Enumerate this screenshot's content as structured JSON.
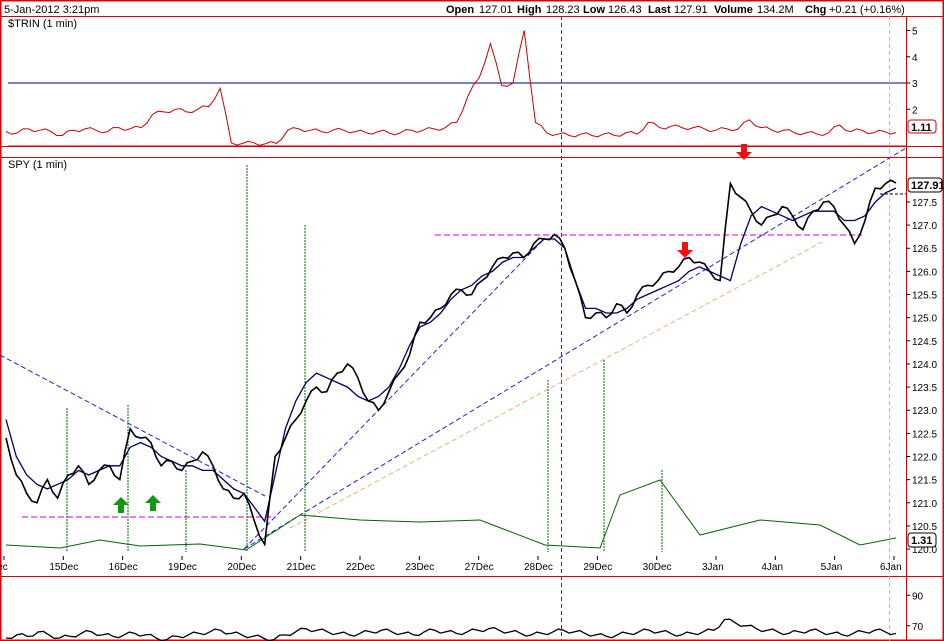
{
  "header": {
    "date": "5-Jan-2012 3:21pm",
    "open_label": "Open",
    "open": "127.01",
    "high_label": "High",
    "high": "128.23",
    "low_label": "Low",
    "low": "126.43",
    "last_label": "Last",
    "last": "127.91",
    "volume_label": "Volume",
    "volume": "134.2M",
    "chg_label": "Chg",
    "chg": "+0.21 (+0.16%)"
  },
  "colors": {
    "frame": "#dd0000",
    "price": "#000000",
    "trin": "#cc0000",
    "ma": "#000066",
    "trendline": "#2222cc",
    "resistance": "#cc00cc",
    "support_trend": "#f0b080",
    "tick": "#006600",
    "hline_blue": "#000080",
    "day_sep": "#cc0000",
    "now_line": "#e0c040",
    "arrow_up": "#119911",
    "arrow_down": "#ee1111"
  },
  "chart_data": [
    {
      "panel": "trin",
      "type": "line",
      "title": "$TRIN (1 min)",
      "y_ticks": [
        "2",
        "3",
        "4",
        "5"
      ],
      "ylim": [
        0.6,
        5.4
      ],
      "reference_line": 3,
      "last_value_badge": "1.11",
      "series": [
        {
          "name": "$TRIN",
          "values": [
            1.15,
            1.1,
            1.25,
            1.2,
            1.15,
            1.0,
            1.2,
            1.25,
            1.2,
            1.15,
            1.3,
            1.25,
            1.3,
            1.8,
            1.9,
            2.0,
            1.9,
            2.0,
            2.1,
            2.8,
            0.72,
            0.7,
            0.72,
            0.68,
            0.7,
            1.2,
            1.25,
            1.2,
            1.15,
            1.2,
            1.2,
            1.15,
            1.1,
            1.15,
            1.1,
            1.1,
            1.2,
            1.2,
            1.25,
            1.3,
            1.5,
            2.5,
            3.2,
            4.5,
            2.9,
            3.0,
            5.0,
            1.5,
            1.1,
            1.05,
            1.0,
            1.05,
            1.0,
            1.05,
            1.0,
            1.1,
            1.05,
            1.5,
            1.3,
            1.35,
            1.3,
            1.3,
            1.25,
            1.2,
            1.25,
            1.25,
            1.6,
            1.3,
            1.2,
            1.2,
            1.1,
            1.1,
            1.05,
            1.1,
            1.4,
            1.15,
            1.2,
            1.1,
            1.15,
            1.11
          ]
        }
      ]
    },
    {
      "panel": "spy",
      "type": "line",
      "title": "SPY (1 min)",
      "y_ticks": [
        "120.0",
        "120.5",
        "121.0",
        "121.5",
        "122.0",
        "122.5",
        "123.0",
        "123.5",
        "124.0",
        "124.5",
        "125.0",
        "125.5",
        "126.0",
        "126.5",
        "127.0",
        "127.5"
      ],
      "ylim": [
        119.85,
        128.45
      ],
      "last_value_badge": "127.91",
      "tick_badge": "1.31",
      "x_labels": [
        "Dec",
        "15Dec",
        "16Dec",
        "19Dec",
        "20Dec",
        "21Dec",
        "22Dec",
        "23Dec",
        "27Dec",
        "28Dec",
        "29Dec",
        "30Dec",
        "3Jan",
        "4Jan",
        "5Jan",
        "6Jan"
      ],
      "series": [
        {
          "name": "SPY",
          "values": [
            122.4,
            121.6,
            121.2,
            121.0,
            121.5,
            121.1,
            121.6,
            121.8,
            121.4,
            121.7,
            121.8,
            121.5,
            122.6,
            122.4,
            122.3,
            121.8,
            121.9,
            121.7,
            121.9,
            122.1,
            121.8,
            121.3,
            121.1,
            121.2,
            120.6,
            120.1,
            122.0,
            122.4,
            122.8,
            123.2,
            123.5,
            123.4,
            123.8,
            124.0,
            123.7,
            123.2,
            123.0,
            123.4,
            123.8,
            124.2,
            124.9,
            125.0,
            125.2,
            125.5,
            125.6,
            125.5,
            125.8,
            126.1,
            126.3,
            126.4,
            126.3,
            126.6,
            126.7,
            126.8,
            126.5,
            125.8,
            125.0,
            125.1,
            125.0,
            125.3,
            125.1,
            125.5,
            125.7,
            125.8,
            126.0,
            126.1,
            126.3,
            126.2,
            126.0,
            125.8,
            127.9,
            127.6,
            127.3,
            127.0,
            127.2,
            127.4,
            127.2,
            126.9,
            127.3,
            127.5,
            127.4,
            127.0,
            126.6,
            127.1,
            127.8,
            127.9,
            127.91
          ]
        },
        {
          "name": "Moving average",
          "values": [
            122.8,
            122.0,
            121.6,
            121.4,
            121.3,
            121.4,
            121.5,
            121.7,
            121.6,
            121.7,
            121.8,
            121.8,
            122.2,
            122.3,
            122.2,
            122.0,
            121.9,
            121.8,
            121.8,
            121.7,
            121.7,
            121.5,
            121.3,
            121.2,
            120.9,
            120.6,
            121.6,
            122.6,
            123.2,
            123.6,
            123.8,
            123.7,
            123.6,
            123.5,
            123.3,
            123.2,
            123.3,
            123.5,
            123.9,
            124.4,
            124.8,
            124.9,
            125.1,
            125.4,
            125.6,
            125.7,
            125.9,
            126.0,
            126.2,
            126.3,
            126.3,
            126.5,
            126.7,
            126.7,
            126.5,
            125.8,
            125.2,
            125.2,
            125.1,
            125.1,
            125.2,
            125.4,
            125.5,
            125.6,
            125.7,
            125.8,
            126.0,
            126.1,
            126.0,
            125.9,
            125.8,
            126.6,
            127.2,
            127.4,
            127.3,
            127.2,
            127.1,
            127.2,
            127.3,
            127.3,
            127.3,
            127.1,
            127.1,
            127.2,
            127.5,
            127.7,
            127.8
          ]
        }
      ]
    },
    {
      "panel": "lower",
      "type": "line",
      "y_ticks": [
        "70",
        "90"
      ],
      "ylim": [
        60,
        100
      ],
      "series": [
        {
          "name": "Indicator",
          "values": [
            62,
            64,
            63,
            66,
            64,
            62,
            63,
            65,
            66,
            64,
            63,
            64,
            65,
            64,
            62,
            61,
            63,
            64,
            65,
            66,
            67,
            65,
            64,
            63,
            62,
            61,
            64,
            66,
            68,
            67,
            66,
            65,
            64,
            65,
            66,
            67,
            66,
            65,
            64,
            66,
            67,
            66,
            65,
            66,
            67,
            68,
            67,
            66,
            65,
            64,
            65,
            66,
            67,
            66,
            65,
            64,
            63,
            64,
            65,
            66,
            67,
            66,
            65,
            64,
            65,
            66,
            67,
            74,
            72,
            70,
            68,
            67,
            66,
            65,
            66,
            67,
            66,
            65,
            64,
            65,
            66,
            67,
            66,
            65
          ]
        }
      ]
    }
  ]
}
